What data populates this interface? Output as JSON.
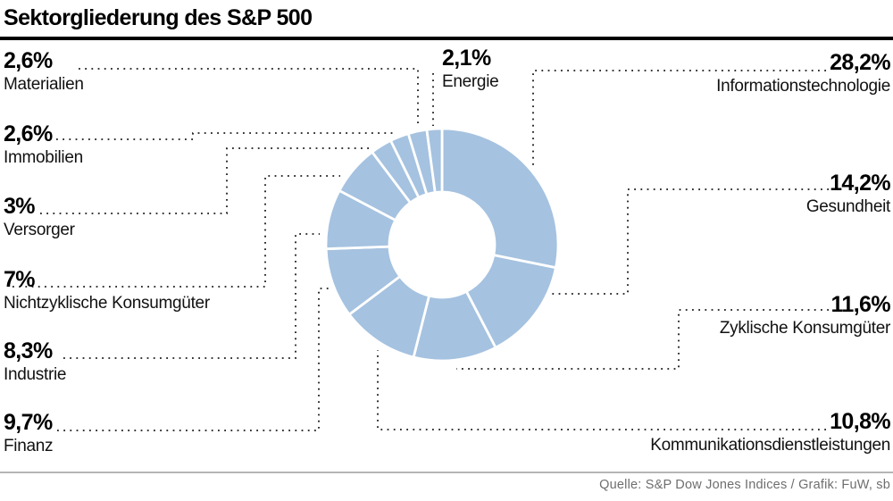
{
  "header": {
    "title": "Sektorgliederung des S&P 500"
  },
  "footer": {
    "source": "Quelle: S&P Dow Jones Indices / Grafik: FuW, sb"
  },
  "colors": {
    "slice": "#a5c2e0",
    "leader_line": "#1a1a1a",
    "title_rule": "#000000",
    "separator_rule": "#b5b5b5",
    "source_text": "#6e6e6e"
  },
  "chart_data": {
    "type": "pie",
    "subtype": "donut",
    "title": "Sektorgliederung des S&P 500",
    "value_unit": "percent",
    "direction": "clockwise",
    "start_angle_deg": 0,
    "legend_position": "none",
    "slices_clockwise_from_top": [
      {
        "label": "Informationstechnologie",
        "value": 28.2,
        "display": "28,2%"
      },
      {
        "label": "Gesundheit",
        "value": 14.2,
        "display": "14,2%"
      },
      {
        "label": "Zyklische Konsumgüter",
        "value": 11.6,
        "display": "11,6%"
      },
      {
        "label": "Kommunikationsdienstleistungen",
        "value": 10.8,
        "display": "10,8%"
      },
      {
        "label": "Finanz",
        "value": 9.7,
        "display": "9,7%"
      },
      {
        "label": "Industrie",
        "value": 8.3,
        "display": "8,3%"
      },
      {
        "label": "Nichtzyklische Konsumgüter",
        "value": 7.0,
        "display": "7%"
      },
      {
        "label": "Versorger",
        "value": 3.0,
        "display": "3%"
      },
      {
        "label": "Immobilien",
        "value": 2.6,
        "display": "2,6%"
      },
      {
        "label": "Materialien",
        "value": 2.6,
        "display": "2,6%"
      },
      {
        "label": "Energie",
        "value": 2.1,
        "display": "2,1%"
      }
    ]
  },
  "labels": {
    "left": [
      {
        "pct": "2,6%",
        "name": "Materialien"
      },
      {
        "pct": "2,6%",
        "name": "Immobilien"
      },
      {
        "pct": "3%",
        "name": "Versorger"
      },
      {
        "pct": "7%",
        "name": "Nichtzyklische Konsumgüter"
      },
      {
        "pct": "8,3%",
        "name": "Industrie"
      },
      {
        "pct": "9,7%",
        "name": "Finanz"
      }
    ],
    "top": {
      "pct": "2,1%",
      "name": "Energie"
    },
    "right": [
      {
        "pct": "28,2%",
        "name": "Informationstechnologie"
      },
      {
        "pct": "14,2%",
        "name": "Gesundheit"
      },
      {
        "pct": "11,6%",
        "name": "Zyklische Konsumgüter"
      },
      {
        "pct": "10,8%",
        "name": "Kommunikationsdienstleistungen"
      }
    ]
  }
}
